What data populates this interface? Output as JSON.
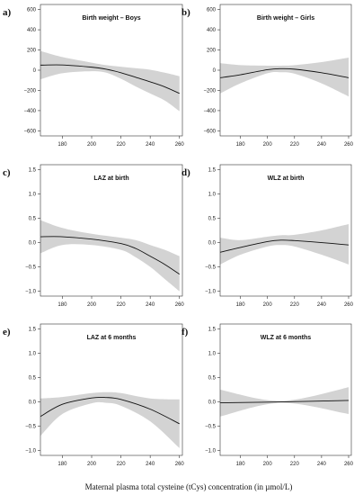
{
  "figure": {
    "xlabel": "Maternal plasma total cysteine (tCys) concentration (in µmol/L)",
    "band_color": "#d3d3d3",
    "line_color": "#111111",
    "axis_color": "#333333"
  },
  "chart_data": [
    {
      "id": "a",
      "letter": "a)",
      "type": "line",
      "title": "Birth weight – Boys",
      "xlim": [
        165,
        262
      ],
      "xticks": [
        180,
        200,
        220,
        240,
        260
      ],
      "ylim": [
        -650,
        650
      ],
      "yticks": [
        -600,
        -400,
        -200,
        0,
        200,
        400,
        600
      ],
      "ytick_labels": [
        "−600",
        "−400",
        "−200",
        "0",
        "200",
        "400",
        "600"
      ],
      "x": [
        165,
        180,
        200,
        210,
        220,
        230,
        240,
        250,
        260
      ],
      "y": [
        50,
        52,
        30,
        10,
        -25,
        -70,
        -115,
        -165,
        -230
      ],
      "lower": [
        -90,
        -30,
        -10,
        -25,
        -85,
        -160,
        -230,
        -300,
        -405
      ],
      "upper": [
        190,
        130,
        75,
        50,
        35,
        20,
        5,
        -25,
        -60
      ]
    },
    {
      "id": "b",
      "letter": "b)",
      "type": "line",
      "title": "Birth weight – Girls",
      "xlim": [
        165,
        262
      ],
      "xticks": [
        180,
        200,
        220,
        240,
        260
      ],
      "ylim": [
        -650,
        650
      ],
      "yticks": [
        -600,
        -400,
        -200,
        0,
        200,
        400,
        600
      ],
      "ytick_labels": [
        "−600",
        "−400",
        "−200",
        "0",
        "200",
        "400",
        "600"
      ],
      "x": [
        165,
        180,
        200,
        210,
        220,
        240,
        260
      ],
      "y": [
        -75,
        -45,
        5,
        15,
        10,
        -25,
        -75
      ],
      "lower": [
        -230,
        -130,
        -30,
        -20,
        -35,
        -130,
        -260
      ],
      "upper": [
        70,
        50,
        45,
        45,
        50,
        80,
        125
      ]
    },
    {
      "id": "c",
      "letter": "c)",
      "type": "line",
      "title": "LAZ at birth",
      "xlim": [
        165,
        262
      ],
      "xticks": [
        180,
        200,
        220,
        240,
        260
      ],
      "ylim": [
        -1.1,
        1.6
      ],
      "yticks": [
        -1.0,
        -0.5,
        0.0,
        0.5,
        1.0,
        1.5
      ],
      "ytick_labels": [
        "−1.0",
        "−0.5",
        "0.0",
        "0.5",
        "1.0",
        "1.5"
      ],
      "x": [
        165,
        180,
        200,
        220,
        230,
        240,
        250,
        260
      ],
      "y": [
        0.12,
        0.12,
        0.07,
        -0.02,
        -0.12,
        -0.28,
        -0.45,
        -0.65
      ],
      "lower": [
        -0.22,
        -0.05,
        -0.05,
        -0.15,
        -0.3,
        -0.5,
        -0.75,
        -1.0
      ],
      "upper": [
        0.46,
        0.3,
        0.18,
        0.1,
        0.05,
        -0.05,
        -0.15,
        -0.28
      ]
    },
    {
      "id": "d",
      "letter": "d)",
      "type": "line",
      "title": "WLZ at birth",
      "xlim": [
        165,
        262
      ],
      "xticks": [
        180,
        200,
        220,
        240,
        260
      ],
      "ylim": [
        -1.1,
        1.6
      ],
      "yticks": [
        -1.0,
        -0.5,
        0.0,
        0.5,
        1.0,
        1.5
      ],
      "ytick_labels": [
        "−1.0",
        "−0.5",
        "0.0",
        "0.5",
        "1.0",
        "1.5"
      ],
      "x": [
        165,
        180,
        200,
        210,
        220,
        240,
        260
      ],
      "y": [
        -0.2,
        -0.1,
        0.02,
        0.05,
        0.04,
        0.0,
        -0.05
      ],
      "lower": [
        -0.45,
        -0.25,
        -0.08,
        -0.05,
        -0.08,
        -0.25,
        -0.45
      ],
      "upper": [
        0.1,
        0.05,
        0.12,
        0.15,
        0.16,
        0.25,
        0.38
      ]
    },
    {
      "id": "e",
      "letter": "e)",
      "type": "line",
      "title": "LAZ at 6 months",
      "xlim": [
        165,
        262
      ],
      "xticks": [
        180,
        200,
        220,
        240,
        260
      ],
      "ylim": [
        -1.1,
        1.6
      ],
      "yticks": [
        -1.0,
        -0.5,
        0.0,
        0.5,
        1.0,
        1.5
      ],
      "ytick_labels": [
        "−1.0",
        "−0.5",
        "0.0",
        "0.5",
        "1.0",
        "1.5"
      ],
      "x": [
        165,
        180,
        200,
        210,
        220,
        240,
        260
      ],
      "y": [
        -0.3,
        -0.05,
        0.08,
        0.09,
        0.05,
        -0.15,
        -0.45
      ],
      "lower": [
        -0.7,
        -0.25,
        -0.03,
        -0.02,
        -0.08,
        -0.4,
        -0.95
      ],
      "upper": [
        0.07,
        0.1,
        0.18,
        0.2,
        0.18,
        0.07,
        0.05
      ]
    },
    {
      "id": "f",
      "letter": "f)",
      "type": "line",
      "title": "WLZ at 6 months",
      "xlim": [
        165,
        262
      ],
      "xticks": [
        180,
        200,
        220,
        240,
        260
      ],
      "ylim": [
        -1.1,
        1.6
      ],
      "yticks": [
        -1.0,
        -0.5,
        0.0,
        0.5,
        1.0,
        1.5
      ],
      "ytick_labels": [
        "−1.0",
        "−0.5",
        "0.0",
        "0.5",
        "1.0",
        "1.5"
      ],
      "x": [
        165,
        210,
        260
      ],
      "y": [
        -0.02,
        0.0,
        0.03
      ],
      "lower": [
        -0.3,
        -0.02,
        -0.25
      ],
      "upper": [
        0.25,
        0.02,
        0.3
      ]
    }
  ]
}
